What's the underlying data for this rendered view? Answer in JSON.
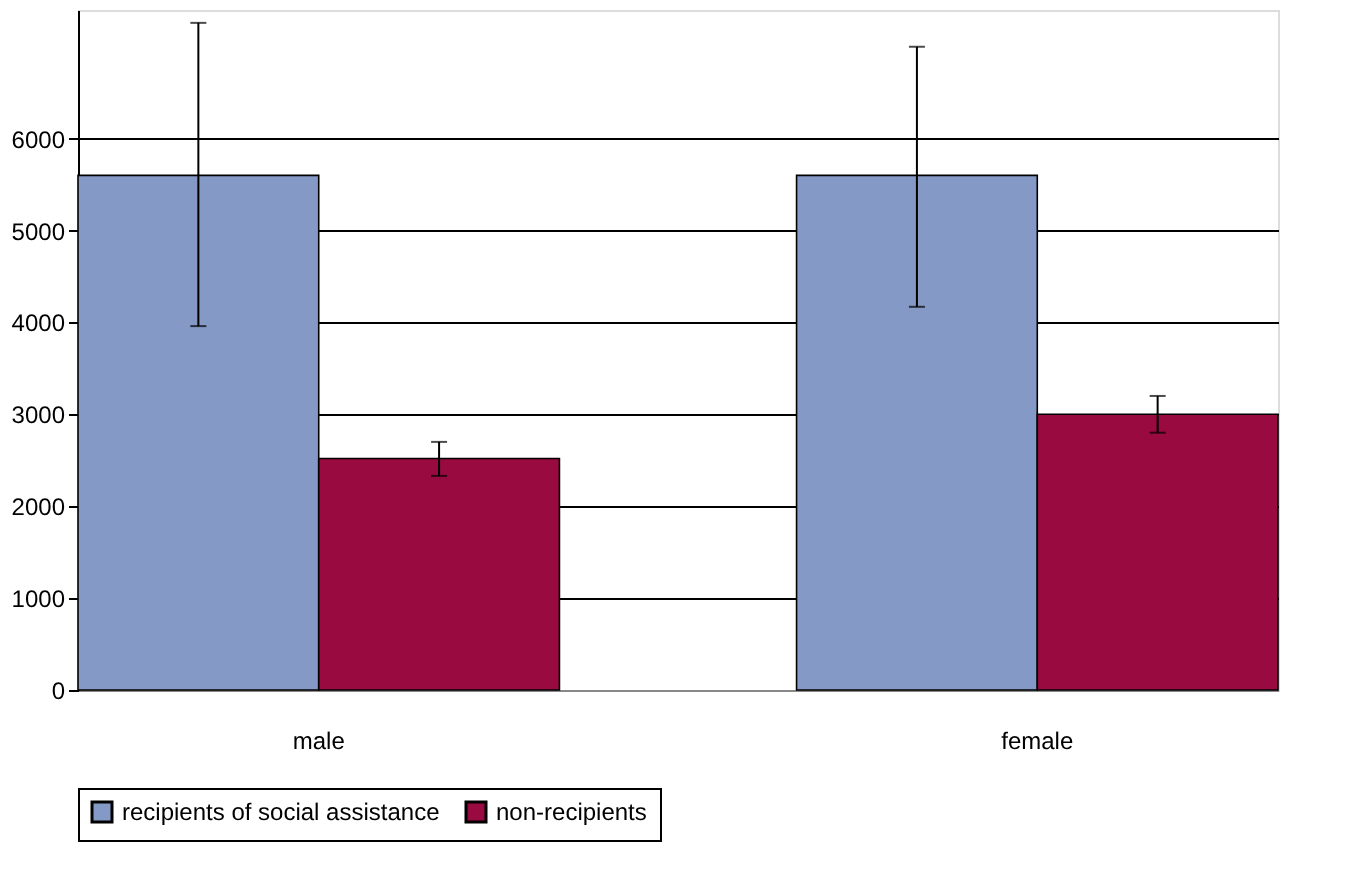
{
  "chart_data": {
    "type": "bar",
    "categories": [
      "male",
      "female"
    ],
    "series": [
      {
        "name": "recipients of social assistance",
        "color": "#8499c6",
        "values": [
          5600,
          5600
        ],
        "errors": [
          [
            3960,
            7260
          ],
          [
            4170,
            7000
          ]
        ]
      },
      {
        "name": "non-recipients",
        "color": "#990a40",
        "values": [
          2520,
          3000
        ],
        "errors": [
          [
            2330,
            2700
          ],
          [
            2800,
            3200
          ]
        ]
      }
    ],
    "ylim": [
      0,
      7400
    ],
    "yticks": [
      0,
      1000,
      2000,
      3000,
      4000,
      5000,
      6000
    ],
    "grid": "y",
    "legend": "bottom"
  }
}
